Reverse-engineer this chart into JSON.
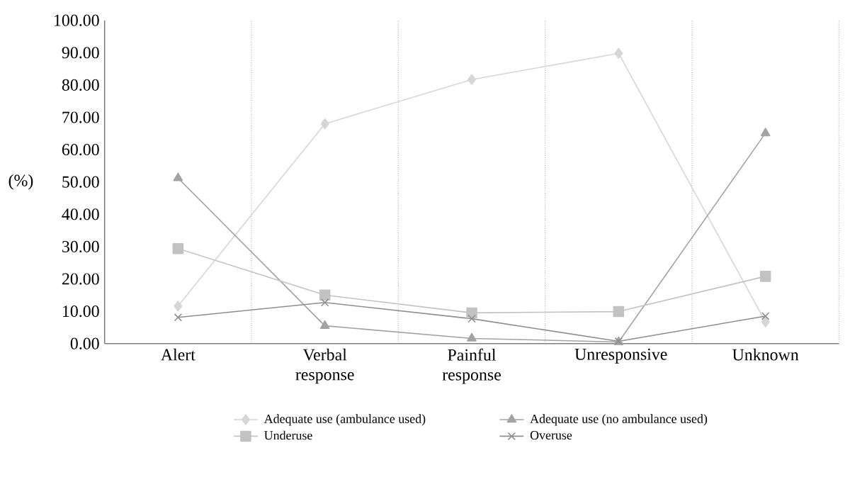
{
  "chart_data": {
    "type": "line",
    "ylabel": "(%)",
    "categories": [
      "Alert",
      "Verbal response",
      "Painful response",
      "Unresponsive",
      "Unknown"
    ],
    "ylim": [
      0,
      100
    ],
    "yticks": [
      {
        "value": 0,
        "label": "0.00"
      },
      {
        "value": 10,
        "label": "10.00"
      },
      {
        "value": 20,
        "label": "20.00"
      },
      {
        "value": 30,
        "label": "30.00"
      },
      {
        "value": 40,
        "label": "40.00"
      },
      {
        "value": 50,
        "label": "50.00"
      },
      {
        "value": 60,
        "label": "60.00"
      },
      {
        "value": 70,
        "label": "70.00"
      },
      {
        "value": 80,
        "label": "80.00"
      },
      {
        "value": 90,
        "label": "90.00"
      },
      {
        "value": 100,
        "label": "100.00"
      }
    ],
    "grid": "x",
    "legend": "bottom",
    "series": [
      {
        "name": "Adequate use (ambulance used)",
        "color": "#d6d6d6",
        "marker": "diamond",
        "values": [
          11.6,
          68,
          81.7,
          89.8,
          6.7
        ]
      },
      {
        "name": "Adequate use (no ambulance used)",
        "color": "#a3a3a3",
        "marker": "triangle",
        "values": [
          51.2,
          5.5,
          1.6,
          0.5,
          65.1
        ]
      },
      {
        "name": "Underuse",
        "color": "#c2c2c2",
        "marker": "square",
        "values": [
          29.4,
          15,
          9.5,
          9.9,
          20.8
        ]
      },
      {
        "name": "Overuse",
        "color": "#8e8e8e",
        "marker": "cross",
        "values": [
          8.1,
          12.7,
          7.7,
          0.7,
          8.5
        ]
      }
    ]
  }
}
